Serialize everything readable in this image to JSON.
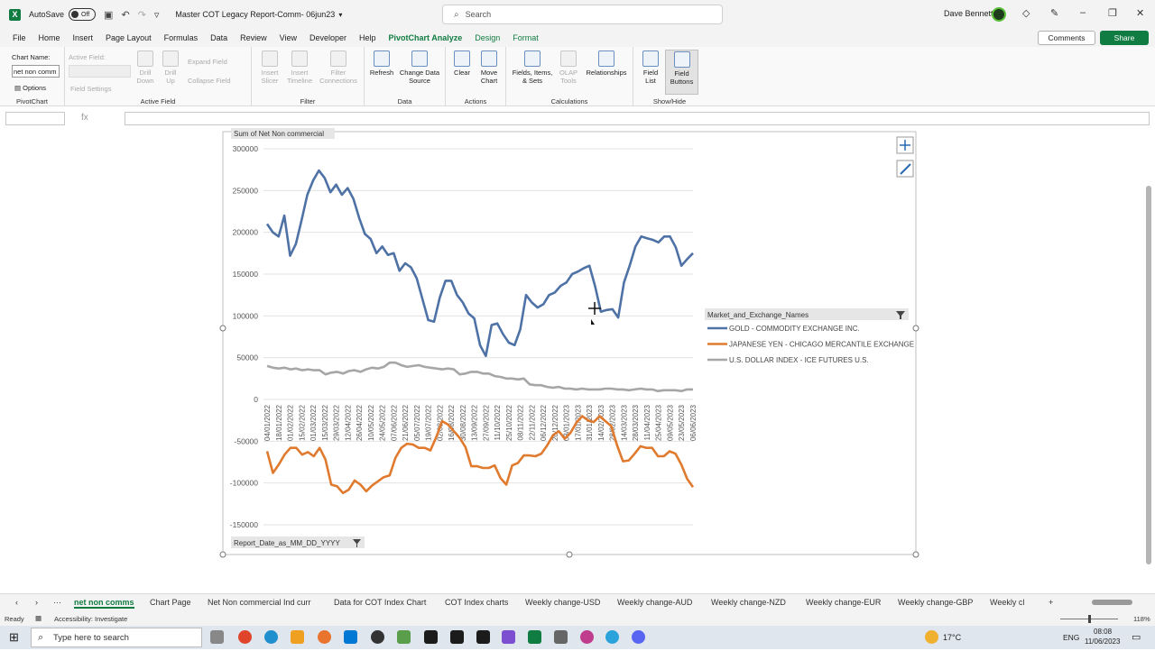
{
  "titlebar": {
    "autosave_label": "AutoSave",
    "autosave_state": "Off",
    "doc_title": "Master COT Legacy Report-Comm- 06jun23",
    "search_placeholder": "Search",
    "user_name": "Dave Bennett"
  },
  "menu": {
    "tabs": [
      "File",
      "Home",
      "Insert",
      "Page Layout",
      "Formulas",
      "Data",
      "Review",
      "View",
      "Developer",
      "Help",
      "PivotChart Analyze",
      "Design",
      "Format"
    ],
    "active_index": 10,
    "comments_label": "Comments",
    "share_label": "Share"
  },
  "ribbon": {
    "pivotchart": {
      "chart_name_label": "Chart Name:",
      "chart_name_value": "net non comm",
      "options_label": "Options",
      "group_label": "PivotChart"
    },
    "active_field": {
      "field_label": "Active Field:",
      "field_settings": "Field Settings",
      "drill_down": "Drill Down",
      "drill_up": "Drill Up",
      "expand_field": "Expand Field",
      "collapse_field": "Collapse Field",
      "group_label": "Active Field"
    },
    "filter": {
      "insert_slicer": "Insert Slicer",
      "insert_timeline": "Insert Timeline",
      "filter_connections": "Filter Connections",
      "group_label": "Filter"
    },
    "data": {
      "refresh": "Refresh",
      "change_data_source": "Change Data Source",
      "group_label": "Data"
    },
    "actions": {
      "clear": "Clear",
      "move_chart": "Move Chart",
      "group_label": "Actions"
    },
    "calculations": {
      "fields_items_sets": "Fields, Items, & Sets",
      "olap_tools": "OLAP Tools",
      "relationships": "Relationships",
      "group_label": "Calculations"
    },
    "showhide": {
      "field_list": "Field List",
      "field_buttons": "Field Buttons",
      "group_label": "Show/Hide"
    }
  },
  "formula": {
    "fx_label": "fx"
  },
  "chart_data": {
    "type": "line",
    "value_field_button": "Sum of Net Non commercial",
    "axis_field_button": "Report_Date_as_MM_DD_YYYY",
    "legend_field_button": "Market_and_Exchange_Names",
    "legend_position": "right",
    "ylim": [
      -150000,
      300000
    ],
    "yticks": [
      300000,
      250000,
      200000,
      150000,
      100000,
      50000,
      0,
      -50000,
      -100000,
      -150000
    ],
    "grid": true,
    "x_tick_labels": [
      "04/01/2022",
      "18/01/2022",
      "01/02/2022",
      "15/02/2022",
      "01/03/2022",
      "15/03/2022",
      "29/03/2022",
      "12/04/2022",
      "26/04/2022",
      "10/05/2022",
      "24/05/2022",
      "07/06/2022",
      "21/06/2022",
      "05/07/2022",
      "19/07/2022",
      "02/08/2022",
      "16/08/2022",
      "30/08/2022",
      "13/09/2022",
      "27/09/2022",
      "11/10/2022",
      "25/10/2022",
      "08/11/2022",
      "22/11/2022",
      "06/12/2022",
      "20/12/2022",
      "03/01/2023",
      "17/01/2023",
      "31/01/2023",
      "14/02/2023",
      "28/02/2023",
      "14/03/2023",
      "28/03/2023",
      "11/04/2023",
      "25/04/2023",
      "09/05/2023",
      "23/05/2023",
      "06/06/2023"
    ],
    "series": [
      {
        "name": "GOLD - COMMODITY EXCHANGE INC.",
        "color": "#4e72a6",
        "values": [
          210000,
          200000,
          195000,
          220000,
          172000,
          186000,
          215000,
          245000,
          262000,
          274000,
          265000,
          248000,
          257000,
          245000,
          253000,
          240000,
          217000,
          198000,
          192000,
          175000,
          183000,
          173000,
          175000,
          154000,
          163000,
          158000,
          145000,
          120000,
          95000,
          93000,
          122000,
          142000,
          142000,
          125000,
          116000,
          103000,
          97000,
          65000,
          52000,
          89000,
          91000,
          78000,
          68000,
          65000,
          84000,
          125000,
          116000,
          110000,
          114000,
          125000,
          128000,
          136000,
          140000,
          150000,
          153000,
          157000,
          160000,
          135000,
          105000,
          107000,
          108000,
          98000,
          140000,
          160000,
          183000,
          195000,
          193000,
          191000,
          188000,
          195000,
          195000,
          182000,
          160000,
          168000,
          175000
        ]
      },
      {
        "name": "JAPANESE YEN - CHICAGO MERCANTILE EXCHANGE",
        "color": "#e07a2e",
        "values": [
          -62000,
          -88000,
          -78000,
          -66000,
          -58000,
          -58000,
          -66000,
          -63000,
          -68000,
          -58000,
          -72000,
          -102000,
          -104000,
          -112000,
          -108000,
          -97000,
          -102000,
          -110000,
          -103000,
          -98000,
          -93000,
          -91000,
          -70000,
          -58000,
          -53000,
          -54000,
          -58000,
          -58000,
          -61000,
          -45000,
          -26000,
          -30000,
          -38000,
          -46000,
          -57000,
          -80000,
          -80000,
          -82000,
          -82000,
          -79000,
          -94000,
          -102000,
          -79000,
          -76000,
          -67000,
          -67000,
          -68000,
          -65000,
          -55000,
          -43000,
          -38000,
          -47000,
          -40000,
          -28000,
          -20000,
          -25000,
          -27000,
          -20000,
          -26000,
          -32000,
          -55000,
          -74000,
          -73000,
          -65000,
          -56000,
          -58000,
          -58000,
          -68000,
          -68000,
          -62000,
          -65000,
          -78000,
          -95000,
          -105000
        ]
      },
      {
        "name": "U.S. DOLLAR INDEX - ICE FUTURES U.S.",
        "color": "#a6a6a6",
        "values": [
          40000,
          38000,
          37000,
          38000,
          36000,
          37000,
          35000,
          36000,
          35000,
          35000,
          30000,
          32000,
          33000,
          31000,
          34000,
          35000,
          33000,
          36000,
          38000,
          37000,
          39000,
          44000,
          44000,
          41000,
          39000,
          40000,
          41000,
          39000,
          38000,
          37000,
          36000,
          37000,
          36000,
          30000,
          31000,
          33000,
          33000,
          31000,
          31000,
          28000,
          27000,
          25000,
          25000,
          24000,
          25000,
          18000,
          17000,
          17000,
          15000,
          14000,
          15000,
          13000,
          13000,
          12000,
          13000,
          12000,
          12000,
          12000,
          13000,
          13000,
          12000,
          12000,
          11000,
          12000,
          13000,
          12000,
          12000,
          10000,
          11000,
          11000,
          11000,
          10000,
          12000,
          12000
        ]
      }
    ]
  },
  "sheets": {
    "tabs": [
      "net non comms",
      "Chart Page",
      "Net Non commercial Ind curr",
      "Data for COT Index Chart",
      "COT Index charts",
      "Weekly change-USD",
      "Weekly change-AUD",
      "Weekly change-NZD",
      "Weekly change-EUR",
      "Weekly change-GBP",
      "Weekly cl"
    ],
    "active_index": 0
  },
  "status": {
    "ready": "Ready",
    "accessibility": "Accessibility: Investigate",
    "zoom": "118%"
  },
  "taskbar": {
    "search_placeholder": "Type here to search",
    "temperature": "17°C",
    "language": "ENG",
    "time": "08:08",
    "date": "11/06/2023"
  }
}
